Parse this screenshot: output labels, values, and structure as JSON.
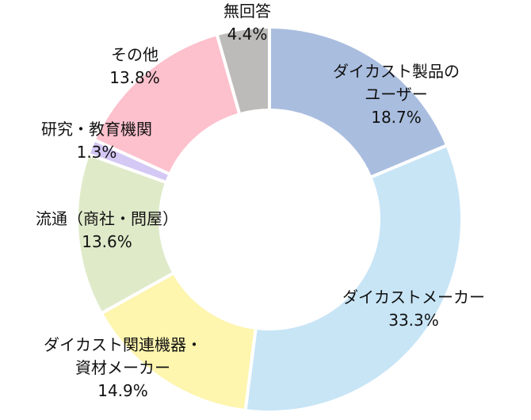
{
  "chart_data": {
    "type": "pie",
    "subtype": "donut",
    "start": "top, clockwise",
    "slices": [
      {
        "label_lines": [
          "ダイカスト製品の",
          "ユーザー"
        ],
        "value": 18.7,
        "value_label": "18.7%",
        "color": "#a9bddf"
      },
      {
        "label_lines": [
          "ダイカストメーカー"
        ],
        "value": 33.3,
        "value_label": "33.3%",
        "color": "#c8e5f6"
      },
      {
        "label_lines": [
          "ダイカスト関連機器・",
          "資材メーカー"
        ],
        "value": 14.9,
        "value_label": "14.9%",
        "color": "#fef5ae"
      },
      {
        "label_lines": [
          "流通（商社・問屋）"
        ],
        "value": 13.6,
        "value_label": "13.6%",
        "color": "#dfeac9"
      },
      {
        "label_lines": [
          "研究・教育機関"
        ],
        "value": 1.3,
        "value_label": "1.3%",
        "color": "#d4c8f5"
      },
      {
        "label_lines": [
          "その他"
        ],
        "value": 13.8,
        "value_label": "13.8%",
        "color": "#fdc0cd"
      },
      {
        "label_lines": [
          "無回答"
        ],
        "value": 4.4,
        "value_label": "4.4%",
        "color": "#bdbbba"
      }
    ],
    "legend": "none"
  }
}
